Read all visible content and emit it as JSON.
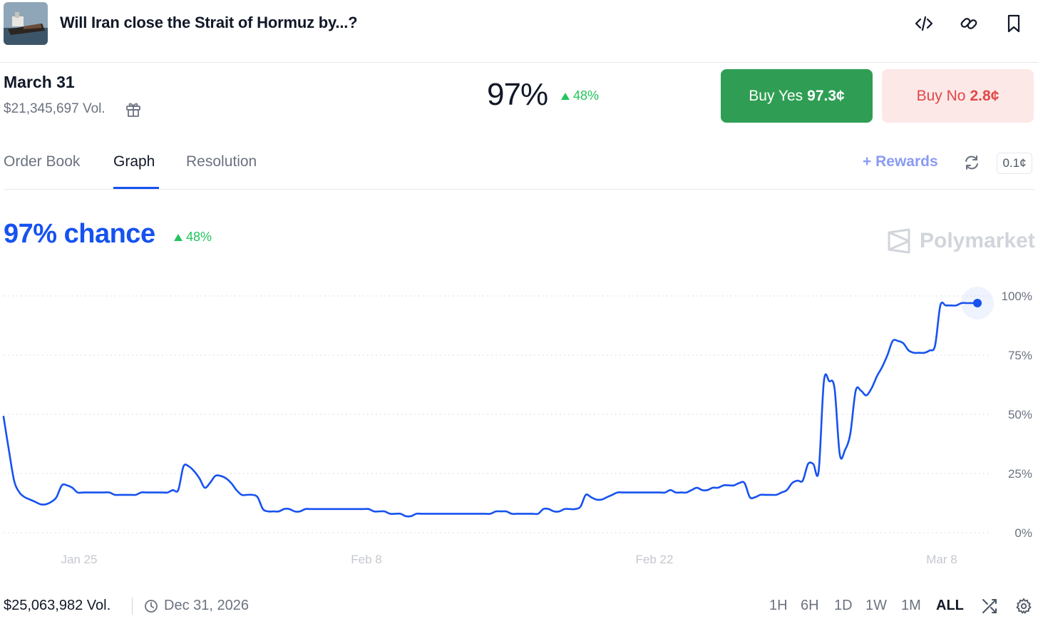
{
  "header": {
    "title": "Will Iran close the Strait of Hormuz by...?",
    "icons": [
      "embed-code-icon",
      "link-icon",
      "bookmark-icon"
    ]
  },
  "market": {
    "date": "March 31",
    "volume": "$21,345,697 Vol.",
    "probability": "97%",
    "change": "48%",
    "buy_yes_label": "Buy Yes",
    "buy_yes_price": "97.3¢",
    "buy_no_label": "Buy No",
    "buy_no_price": "2.8¢",
    "colors": {
      "yes": "#2f9e54",
      "no_bg": "#fde8e8",
      "no_text": "#e04747",
      "up": "#22c55e"
    }
  },
  "tabs": [
    {
      "label": "Order Book",
      "active": false
    },
    {
      "label": "Graph",
      "active": true
    },
    {
      "label": "Resolution",
      "active": false
    }
  ],
  "toolbar": {
    "rewards_label": "+ Rewards",
    "tick_size": "0.1¢"
  },
  "chart_header": {
    "chance_label": "97% chance",
    "change": "48%",
    "brand": "Polymarket"
  },
  "chart_data": {
    "type": "line",
    "x_tick_labels": [
      "Jan 25",
      "Feb 8",
      "Feb 22",
      "Mar 8"
    ],
    "y_tick_labels": [
      "100%",
      "75%",
      "50%",
      "25%",
      "0%"
    ],
    "ylim": [
      0,
      100
    ],
    "grid": true,
    "line_color": "#1652f0",
    "series": [
      {
        "values": [
          49,
          35,
          22,
          17,
          15,
          14,
          13,
          12,
          12,
          13,
          15,
          20,
          20,
          19,
          17,
          17,
          17,
          17,
          17,
          17,
          17,
          16,
          16,
          16,
          16,
          16,
          17,
          17,
          17,
          17,
          17,
          17,
          18,
          18,
          28,
          28,
          26,
          23,
          19,
          21,
          24,
          24,
          23,
          21,
          18,
          16,
          16,
          16,
          15,
          10,
          9,
          9,
          9,
          10,
          10,
          9,
          9,
          10,
          10,
          10,
          10,
          10,
          10,
          10,
          10,
          10,
          10,
          10,
          10,
          10,
          9,
          9,
          9,
          8,
          8,
          8,
          7,
          7,
          8,
          8,
          8,
          8,
          8,
          8,
          8,
          8,
          8,
          8,
          8,
          8,
          8,
          8,
          8,
          9,
          9,
          9,
          8,
          8,
          8,
          8,
          8,
          8,
          10,
          10,
          9,
          9,
          10,
          10,
          10,
          11,
          16,
          15,
          14,
          14,
          15,
          16,
          17,
          17,
          17,
          17,
          17,
          17,
          17,
          17,
          17,
          17,
          18,
          17,
          17,
          17,
          18,
          19,
          18,
          18,
          19,
          19,
          20,
          20,
          20,
          21,
          21,
          15,
          15,
          16,
          16,
          16,
          16,
          17,
          18,
          21,
          22,
          22,
          29,
          29,
          26,
          64,
          64,
          61,
          33,
          35,
          42,
          60,
          60,
          58,
          61,
          66,
          70,
          75,
          81,
          81,
          80,
          77,
          76,
          76,
          76,
          77,
          79,
          96,
          96,
          96,
          96,
          97,
          97,
          97,
          97
        ]
      }
    ]
  },
  "footer": {
    "volume": "$25,063,982 Vol.",
    "end_date": "Dec 31, 2026",
    "ranges": [
      {
        "label": "1H",
        "active": false
      },
      {
        "label": "6H",
        "active": false
      },
      {
        "label": "1D",
        "active": false
      },
      {
        "label": "1W",
        "active": false
      },
      {
        "label": "1M",
        "active": false
      },
      {
        "label": "ALL",
        "active": true
      }
    ]
  }
}
